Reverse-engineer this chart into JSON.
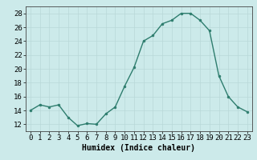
{
  "x": [
    0,
    1,
    2,
    3,
    4,
    5,
    6,
    7,
    8,
    9,
    10,
    11,
    12,
    13,
    14,
    15,
    16,
    17,
    18,
    19,
    20,
    21,
    22,
    23
  ],
  "y": [
    14,
    14.8,
    14.5,
    14.8,
    13,
    11.8,
    12.1,
    12,
    13.5,
    14.5,
    17.5,
    20.2,
    24,
    24.8,
    26.5,
    27,
    28,
    28,
    27,
    25.5,
    19,
    16,
    14.5,
    13.8
  ],
  "line_color": "#2e7d6e",
  "marker": "o",
  "markersize": 2,
  "linewidth": 1.0,
  "background_color": "#cceaea",
  "grid_color": "#b8d8d8",
  "xlabel": "Humidex (Indice chaleur)",
  "xlabel_fontsize": 7,
  "ylabel_ticks": [
    12,
    14,
    16,
    18,
    20,
    22,
    24,
    26,
    28
  ],
  "ylim": [
    11,
    29
  ],
  "xlim": [
    -0.5,
    23.5
  ],
  "tick_fontsize": 6.5
}
